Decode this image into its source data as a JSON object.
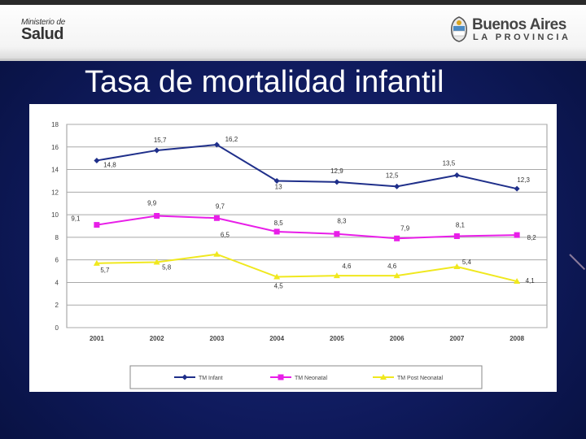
{
  "header": {
    "ministerio_line1": "Ministerio de",
    "ministerio_line2": "Salud",
    "brand_title": "Buenos Aires",
    "brand_subtitle": "LA PROVINCIA"
  },
  "slide_title": "Tasa de mortalidad infantil",
  "colors": {
    "infant": "#1f2f8a",
    "neonatal": "#e81ee8",
    "postneonatal": "#f0e81e"
  },
  "chart_data": {
    "type": "line",
    "title": "",
    "xlabel": "",
    "ylabel": "",
    "ylim": [
      0,
      18
    ],
    "yticks": [
      0,
      2,
      4,
      6,
      8,
      10,
      12,
      14,
      16,
      18
    ],
    "grid": true,
    "legend": "bottom",
    "categories": [
      "2001",
      "2002",
      "2003",
      "2004",
      "2005",
      "2006",
      "2007",
      "2008"
    ],
    "series": [
      {
        "name": "TM Infant",
        "values": [
          14.8,
          15.7,
          16.2,
          13,
          12.9,
          12.5,
          13.5,
          12.3
        ],
        "labels": [
          "14,8",
          "15,7",
          "16,2",
          "13",
          "12,9",
          "12,5",
          "13,5",
          "12,3"
        ],
        "marker": "diamond"
      },
      {
        "name": "TM Neonatal",
        "values": [
          9.1,
          9.9,
          9.7,
          8.5,
          8.3,
          7.9,
          8.1,
          8.2
        ],
        "labels": [
          "9,1",
          "9,9",
          "9,7",
          "8,5",
          "8,3",
          "7,9",
          "8,1",
          "8,2"
        ],
        "marker": "square"
      },
      {
        "name": "TM Post Neonatal",
        "values": [
          5.7,
          5.8,
          6.5,
          4.5,
          4.6,
          4.6,
          5.4,
          4.1
        ],
        "labels": [
          "5,7",
          "5,8",
          "6,5",
          "4,5",
          "4,6",
          "4,6",
          "5,4",
          "4,1"
        ],
        "marker": "triangle"
      }
    ]
  }
}
